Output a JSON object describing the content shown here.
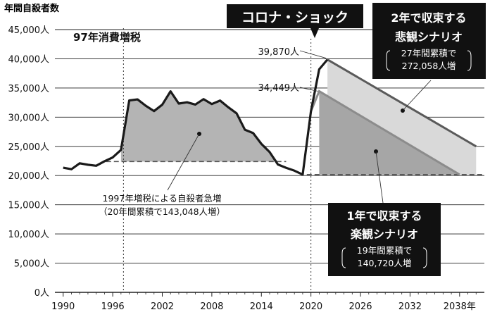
{
  "chart_data": {
    "type": "line",
    "ylabel": "年間自殺者数",
    "y_ticks": [
      "0人",
      "5,000人",
      "10,000人",
      "15,000人",
      "20,000人",
      "25,000人",
      "30,000人",
      "35,000人",
      "40,000人",
      "45,000人"
    ],
    "ylim": [
      0,
      45000
    ],
    "x_ticks": [
      "1990",
      "1996",
      "2002",
      "2008",
      "2014",
      "2020",
      "2026",
      "2032",
      "2038年"
    ],
    "xlim": [
      1989,
      2041
    ],
    "series": [
      {
        "name": "年間自殺者数",
        "x": [
          1990,
          1991,
          1992,
          1993,
          1994,
          1995,
          1996,
          1997,
          1998,
          1999,
          2000,
          2001,
          2002,
          2003,
          2004,
          2005,
          2006,
          2007,
          2008,
          2009,
          2010,
          2011,
          2012,
          2013,
          2014,
          2015,
          2016,
          2017,
          2018,
          2019,
          2020,
          2021,
          2022
        ],
        "values": [
          21346,
          21084,
          22104,
          21851,
          21679,
          22445,
          23104,
          24391,
          32863,
          33048,
          31957,
          31042,
          32143,
          34427,
          32325,
          32552,
          32155,
          33093,
          32249,
          32845,
          31690,
          30651,
          27858,
          27283,
          25427,
          24025,
          21897,
          21321,
          20840,
          20169,
          31000,
          38200,
          39870
        ]
      }
    ],
    "baseline_1997": 22400,
    "scenarios": [
      {
        "name": "悲観シナリオ",
        "peak_year": 2022,
        "peak": 39870,
        "end_year": 2040,
        "end": 25000,
        "baseline": 20169
      },
      {
        "name": "楽観シナリオ",
        "peak_year": 2021,
        "peak": 34449,
        "end_year": 2038,
        "end": 20169,
        "baseline": 20169
      }
    ]
  },
  "events": {
    "tax": "97年消費増税",
    "corona": "コロナ・ショック"
  },
  "annotations": {
    "peak_pess": "39,870人",
    "peak_opt": "34,449人",
    "tax_line1": "1997年増税による自殺者急増",
    "tax_line2": "（20年間累積で143,048人増）"
  },
  "pessimistic_box": {
    "line1": "2年で収束する",
    "line2": "悲観シナリオ",
    "line3": "27年間累積で",
    "line4": "272,058人増"
  },
  "optimistic_box": {
    "line1": "1年で収束する",
    "line2": "楽観シナリオ",
    "line3": "19年間累積で",
    "line4": "140,720人増"
  },
  "colors": {
    "line": "#1a1a1a",
    "area_1997": "#b4b4b4",
    "area_pess": "#d9d9d9",
    "area_opt": "#a6a6a6",
    "pess_line": "#5a5a5a",
    "opt_line": "#8c8c8c",
    "box": "#111111"
  }
}
